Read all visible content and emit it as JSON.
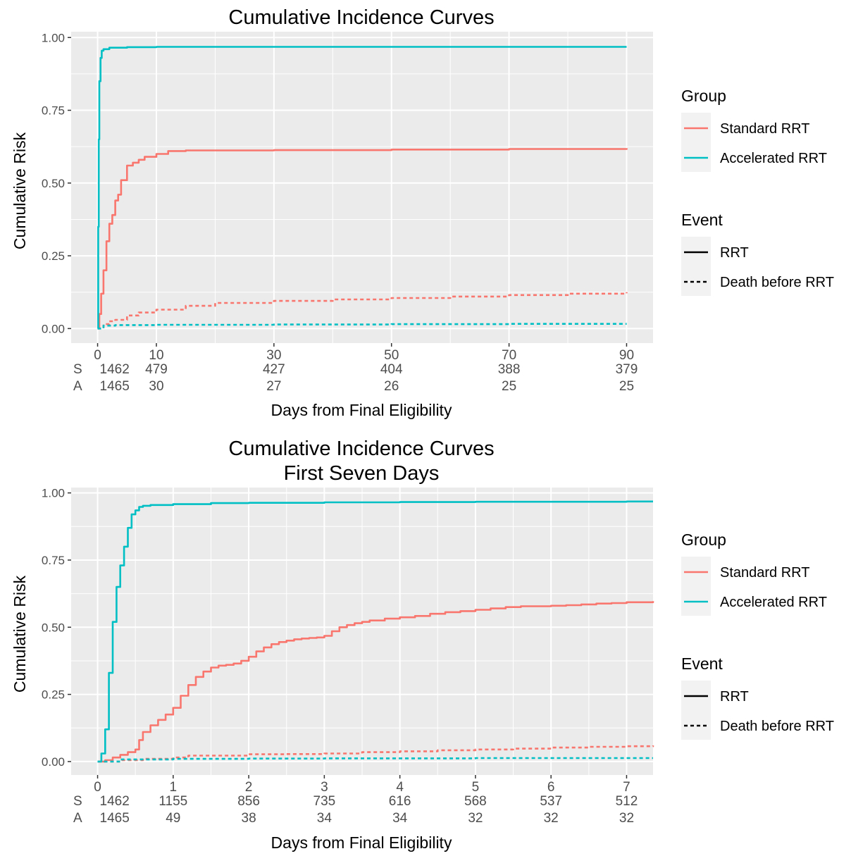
{
  "chart_data": [
    {
      "type": "line",
      "title": "Cumulative Incidence Curves",
      "xlabel": "Days from Final Eligibility",
      "ylabel": "Cumulative Risk",
      "xlim": [
        -4.5,
        94.5
      ],
      "ylim": [
        -0.05,
        1.02
      ],
      "x_ticks": [
        0,
        10,
        30,
        50,
        70,
        90
      ],
      "x_minor": [
        20,
        40,
        60,
        80
      ],
      "y_ticks": [
        {
          "value": 0.0,
          "label": "0.00"
        },
        {
          "value": 0.25,
          "label": "0.25"
        },
        {
          "value": 0.5,
          "label": "0.50"
        },
        {
          "value": 0.75,
          "label": "0.75"
        },
        {
          "value": 1.0,
          "label": "1.00"
        }
      ],
      "grid": true,
      "legend_position": "right",
      "legends": {
        "group": {
          "title": "Group",
          "entries": [
            "Standard RRT",
            "Accelerated RRT"
          ]
        },
        "event": {
          "title": "Event",
          "entries": [
            "RRT",
            "Death before RRT"
          ]
        }
      },
      "risk_table": {
        "rows": [
          {
            "label": "S",
            "values": [
              1462,
              479,
              427,
              404,
              388,
              379
            ]
          },
          {
            "label": "A",
            "values": [
              1465,
              30,
              27,
              26,
              25,
              25
            ]
          }
        ]
      },
      "series": [
        {
          "group": "Standard RRT",
          "event": "RRT",
          "color": "#f8766d",
          "style": "solid",
          "x": [
            0,
            0.3,
            0.6,
            1,
            1.5,
            2,
            2.5,
            3,
            3.5,
            4,
            5,
            6,
            7,
            8,
            10,
            12,
            15,
            20,
            30,
            50,
            70,
            90
          ],
          "y": [
            0,
            0.05,
            0.12,
            0.2,
            0.3,
            0.36,
            0.39,
            0.44,
            0.46,
            0.51,
            0.56,
            0.57,
            0.58,
            0.59,
            0.6,
            0.61,
            0.612,
            0.612,
            0.613,
            0.615,
            0.617,
            0.62
          ]
        },
        {
          "group": "Accelerated RRT",
          "event": "RRT",
          "color": "#00bfc4",
          "style": "solid",
          "x": [
            0,
            0.1,
            0.2,
            0.3,
            0.5,
            0.7,
            1,
            2,
            5,
            10,
            30,
            50,
            70,
            90
          ],
          "y": [
            0,
            0.35,
            0.65,
            0.85,
            0.93,
            0.955,
            0.96,
            0.965,
            0.967,
            0.968,
            0.968,
            0.968,
            0.968,
            0.968
          ]
        },
        {
          "group": "Standard RRT",
          "event": "Death before RRT",
          "color": "#f8766d",
          "style": "dashed",
          "x": [
            0,
            1,
            2,
            3,
            5,
            7,
            10,
            15,
            20,
            30,
            40,
            50,
            60,
            70,
            80,
            90
          ],
          "y": [
            0,
            0.015,
            0.025,
            0.03,
            0.045,
            0.055,
            0.065,
            0.078,
            0.088,
            0.095,
            0.1,
            0.105,
            0.11,
            0.115,
            0.12,
            0.125
          ]
        },
        {
          "group": "Accelerated RRT",
          "event": "Death before RRT",
          "color": "#00bfc4",
          "style": "dashed",
          "x": [
            0,
            1,
            3,
            10,
            30,
            50,
            70,
            90
          ],
          "y": [
            0,
            0.01,
            0.012,
            0.013,
            0.014,
            0.015,
            0.016,
            0.016
          ]
        }
      ]
    },
    {
      "type": "line",
      "title": "Cumulative Incidence Curves",
      "subtitle": "First Seven Days",
      "xlabel": "Days from Final Eligibility",
      "ylabel": "Cumulative Risk",
      "xlim": [
        -0.35,
        7.35
      ],
      "ylim": [
        -0.05,
        1.02
      ],
      "x_ticks": [
        0,
        1,
        2,
        3,
        4,
        5,
        6,
        7
      ],
      "x_minor": [
        0.5,
        1.5,
        2.5,
        3.5,
        4.5,
        5.5,
        6.5
      ],
      "y_ticks": [
        {
          "value": 0.0,
          "label": "0.00"
        },
        {
          "value": 0.25,
          "label": "0.25"
        },
        {
          "value": 0.5,
          "label": "0.50"
        },
        {
          "value": 0.75,
          "label": "0.75"
        },
        {
          "value": 1.0,
          "label": "1.00"
        }
      ],
      "grid": true,
      "legend_position": "right",
      "legends": {
        "group": {
          "title": "Group",
          "entries": [
            "Standard RRT",
            "Accelerated RRT"
          ]
        },
        "event": {
          "title": "Event",
          "entries": [
            "RRT",
            "Death before RRT"
          ]
        }
      },
      "risk_table": {
        "rows": [
          {
            "label": "S",
            "values": [
              1462,
              1155,
              856,
              735,
              616,
              568,
              537,
              512
            ]
          },
          {
            "label": "A",
            "values": [
              1465,
              49,
              38,
              34,
              34,
              32,
              32,
              32
            ]
          }
        ]
      },
      "series": [
        {
          "group": "Standard RRT",
          "event": "RRT",
          "color": "#f8766d",
          "style": "solid",
          "x": [
            0,
            0.1,
            0.2,
            0.3,
            0.4,
            0.5,
            0.55,
            0.6,
            0.7,
            0.8,
            0.9,
            1.0,
            1.1,
            1.2,
            1.3,
            1.4,
            1.5,
            1.6,
            1.7,
            1.8,
            1.9,
            2.0,
            2.1,
            2.2,
            2.3,
            2.4,
            2.5,
            2.6,
            2.7,
            2.8,
            2.9,
            3.0,
            3.1,
            3.2,
            3.3,
            3.4,
            3.5,
            3.6,
            3.8,
            4.0,
            4.2,
            4.4,
            4.6,
            4.8,
            5.0,
            5.2,
            5.4,
            5.6,
            5.8,
            6.0,
            6.2,
            6.4,
            6.6,
            6.8,
            7.0,
            7.35
          ],
          "y": [
            0,
            0.005,
            0.015,
            0.025,
            0.035,
            0.045,
            0.08,
            0.11,
            0.135,
            0.155,
            0.175,
            0.2,
            0.245,
            0.285,
            0.315,
            0.335,
            0.35,
            0.357,
            0.36,
            0.365,
            0.375,
            0.39,
            0.41,
            0.425,
            0.437,
            0.445,
            0.45,
            0.455,
            0.458,
            0.46,
            0.462,
            0.468,
            0.485,
            0.5,
            0.508,
            0.515,
            0.52,
            0.525,
            0.532,
            0.537,
            0.542,
            0.55,
            0.556,
            0.56,
            0.565,
            0.57,
            0.575,
            0.578,
            0.578,
            0.58,
            0.582,
            0.585,
            0.588,
            0.59,
            0.593,
            0.597
          ]
        },
        {
          "group": "Accelerated RRT",
          "event": "RRT",
          "color": "#00bfc4",
          "style": "solid",
          "x": [
            0,
            0.05,
            0.1,
            0.15,
            0.2,
            0.25,
            0.3,
            0.35,
            0.4,
            0.45,
            0.5,
            0.55,
            0.6,
            0.7,
            1.0,
            1.5,
            2.0,
            3.0,
            4.0,
            5.0,
            6.0,
            7.0,
            7.35
          ],
          "y": [
            0,
            0.03,
            0.12,
            0.33,
            0.52,
            0.65,
            0.73,
            0.8,
            0.87,
            0.92,
            0.935,
            0.948,
            0.952,
            0.955,
            0.958,
            0.962,
            0.963,
            0.965,
            0.966,
            0.967,
            0.967,
            0.968,
            0.968
          ]
        },
        {
          "group": "Standard RRT",
          "event": "Death before RRT",
          "color": "#f8766d",
          "style": "dashed",
          "x": [
            0,
            0.3,
            0.6,
            1.0,
            1.2,
            1.5,
            2.0,
            2.5,
            3.0,
            3.5,
            4.0,
            4.5,
            5.0,
            5.5,
            6.0,
            6.5,
            7.0,
            7.35
          ],
          "y": [
            0,
            0.005,
            0.01,
            0.015,
            0.022,
            0.022,
            0.027,
            0.028,
            0.03,
            0.035,
            0.038,
            0.042,
            0.045,
            0.048,
            0.052,
            0.055,
            0.057,
            0.06
          ]
        },
        {
          "group": "Accelerated RRT",
          "event": "Death before RRT",
          "color": "#00bfc4",
          "style": "dashed",
          "x": [
            0,
            0.3,
            1.0,
            2.0,
            3.0,
            4.0,
            5.0,
            6.0,
            7.0,
            7.35
          ],
          "y": [
            0,
            0.008,
            0.01,
            0.011,
            0.012,
            0.012,
            0.013,
            0.013,
            0.013,
            0.013
          ]
        }
      ]
    }
  ]
}
